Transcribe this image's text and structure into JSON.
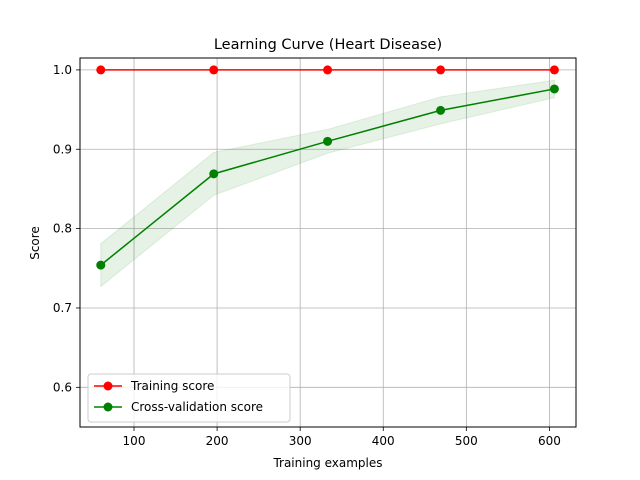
{
  "chart_data": {
    "type": "line",
    "title": "Learning Curve (Heart Disease)",
    "xlabel": "Training examples",
    "ylabel": "Score",
    "xlim": [
      35,
      632
    ],
    "ylim": [
      0.55,
      1.015
    ],
    "xticks": [
      100,
      200,
      300,
      400,
      500,
      600
    ],
    "yticks": [
      0.6,
      0.7,
      0.8,
      0.9,
      1.0
    ],
    "ytick_labels": [
      "0.6",
      "0.7",
      "0.8",
      "0.9",
      "1.0"
    ],
    "grid": true,
    "legend_position": "lower-left",
    "x": [
      60,
      196,
      333,
      469,
      606
    ],
    "series": [
      {
        "name": "Training score",
        "color": "#ff0000",
        "values": [
          1.0,
          1.0,
          1.0,
          1.0,
          1.0
        ],
        "band_lower": [
          1.0,
          1.0,
          1.0,
          1.0,
          1.0
        ],
        "band_upper": [
          1.0,
          1.0,
          1.0,
          1.0,
          1.0
        ]
      },
      {
        "name": "Cross-validation score",
        "color": "#008000",
        "values": [
          0.754,
          0.869,
          0.91,
          0.949,
          0.976
        ],
        "band_lower": [
          0.727,
          0.842,
          0.895,
          0.932,
          0.965
        ],
        "band_upper": [
          0.781,
          0.896,
          0.925,
          0.966,
          0.987
        ]
      }
    ]
  }
}
